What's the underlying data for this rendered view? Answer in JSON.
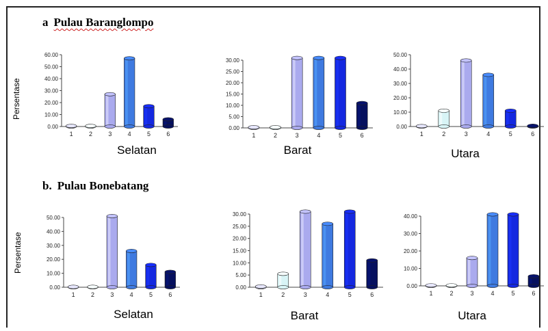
{
  "section_a": {
    "letter": "a",
    "name": "Pulau Baranglompo"
  },
  "section_b": {
    "letter": "b.",
    "name": "Pulau Bonebatang"
  },
  "colors": {
    "1": "#c9c9e6",
    "2": "#d8f4f6",
    "3": "#aaaaee",
    "4": "#3f7ae0",
    "5": "#1428e0",
    "6": "#06105e"
  },
  "chart_data": [
    {
      "type": "bar",
      "title": "Selatan",
      "ylabel": "Persentase",
      "categories": [
        "1",
        "2",
        "3",
        "4",
        "5",
        "6"
      ],
      "values": [
        0.5,
        0.5,
        27,
        57,
        17,
        6
      ],
      "yticks": [
        "0.00",
        "10.00",
        "20.00",
        "30.00",
        "40.00",
        "50.00",
        "60.00"
      ],
      "ylim": [
        0,
        60
      ]
    },
    {
      "type": "bar",
      "title": "Barat",
      "ylabel": "",
      "categories": [
        "1",
        "2",
        "3",
        "4",
        "5",
        "6"
      ],
      "values": [
        0.3,
        0.3,
        31,
        31,
        31,
        11
      ],
      "yticks": [
        "0.00",
        "5.00",
        "10.00",
        "15.00",
        "20.00",
        "25.00",
        "30.00"
      ],
      "ylim": [
        0,
        30
      ]
    },
    {
      "type": "bar",
      "title": "Utara",
      "ylabel": "",
      "categories": [
        "1",
        "2",
        "3",
        "4",
        "5",
        "6"
      ],
      "values": [
        0.3,
        11,
        46,
        36,
        11,
        0.5
      ],
      "yticks": [
        "0.00",
        "10.00",
        "20.00",
        "30.00",
        "40.00",
        "50.00"
      ],
      "ylim": [
        0,
        50
      ]
    },
    {
      "type": "bar",
      "title": "Selatan",
      "ylabel": "Persentase",
      "categories": [
        "1",
        "2",
        "3",
        "4",
        "5",
        "6"
      ],
      "values": [
        0.3,
        0.3,
        51,
        26,
        16,
        11
      ],
      "yticks": [
        "0.00",
        "10.00",
        "20.00",
        "30.00",
        "40.00",
        "50.00"
      ],
      "ylim": [
        0,
        50
      ]
    },
    {
      "type": "bar",
      "title": "Barat",
      "ylabel": "",
      "categories": [
        "1",
        "2",
        "3",
        "4",
        "5",
        "6"
      ],
      "values": [
        0.3,
        5.5,
        31,
        26,
        31,
        11
      ],
      "yticks": [
        "0.00",
        "5.00",
        "10.00",
        "15.00",
        "20.00",
        "25.00",
        "30.00"
      ],
      "ylim": [
        0,
        30
      ]
    },
    {
      "type": "bar",
      "title": "Utara",
      "ylabel": "",
      "categories": [
        "1",
        "2",
        "3",
        "4",
        "5",
        "6"
      ],
      "values": [
        0.3,
        0.3,
        16,
        41,
        41,
        5.5
      ],
      "yticks": [
        "0.00",
        "10.00",
        "20.00",
        "30.00",
        "40.00"
      ],
      "ylim": [
        0,
        40
      ]
    }
  ]
}
